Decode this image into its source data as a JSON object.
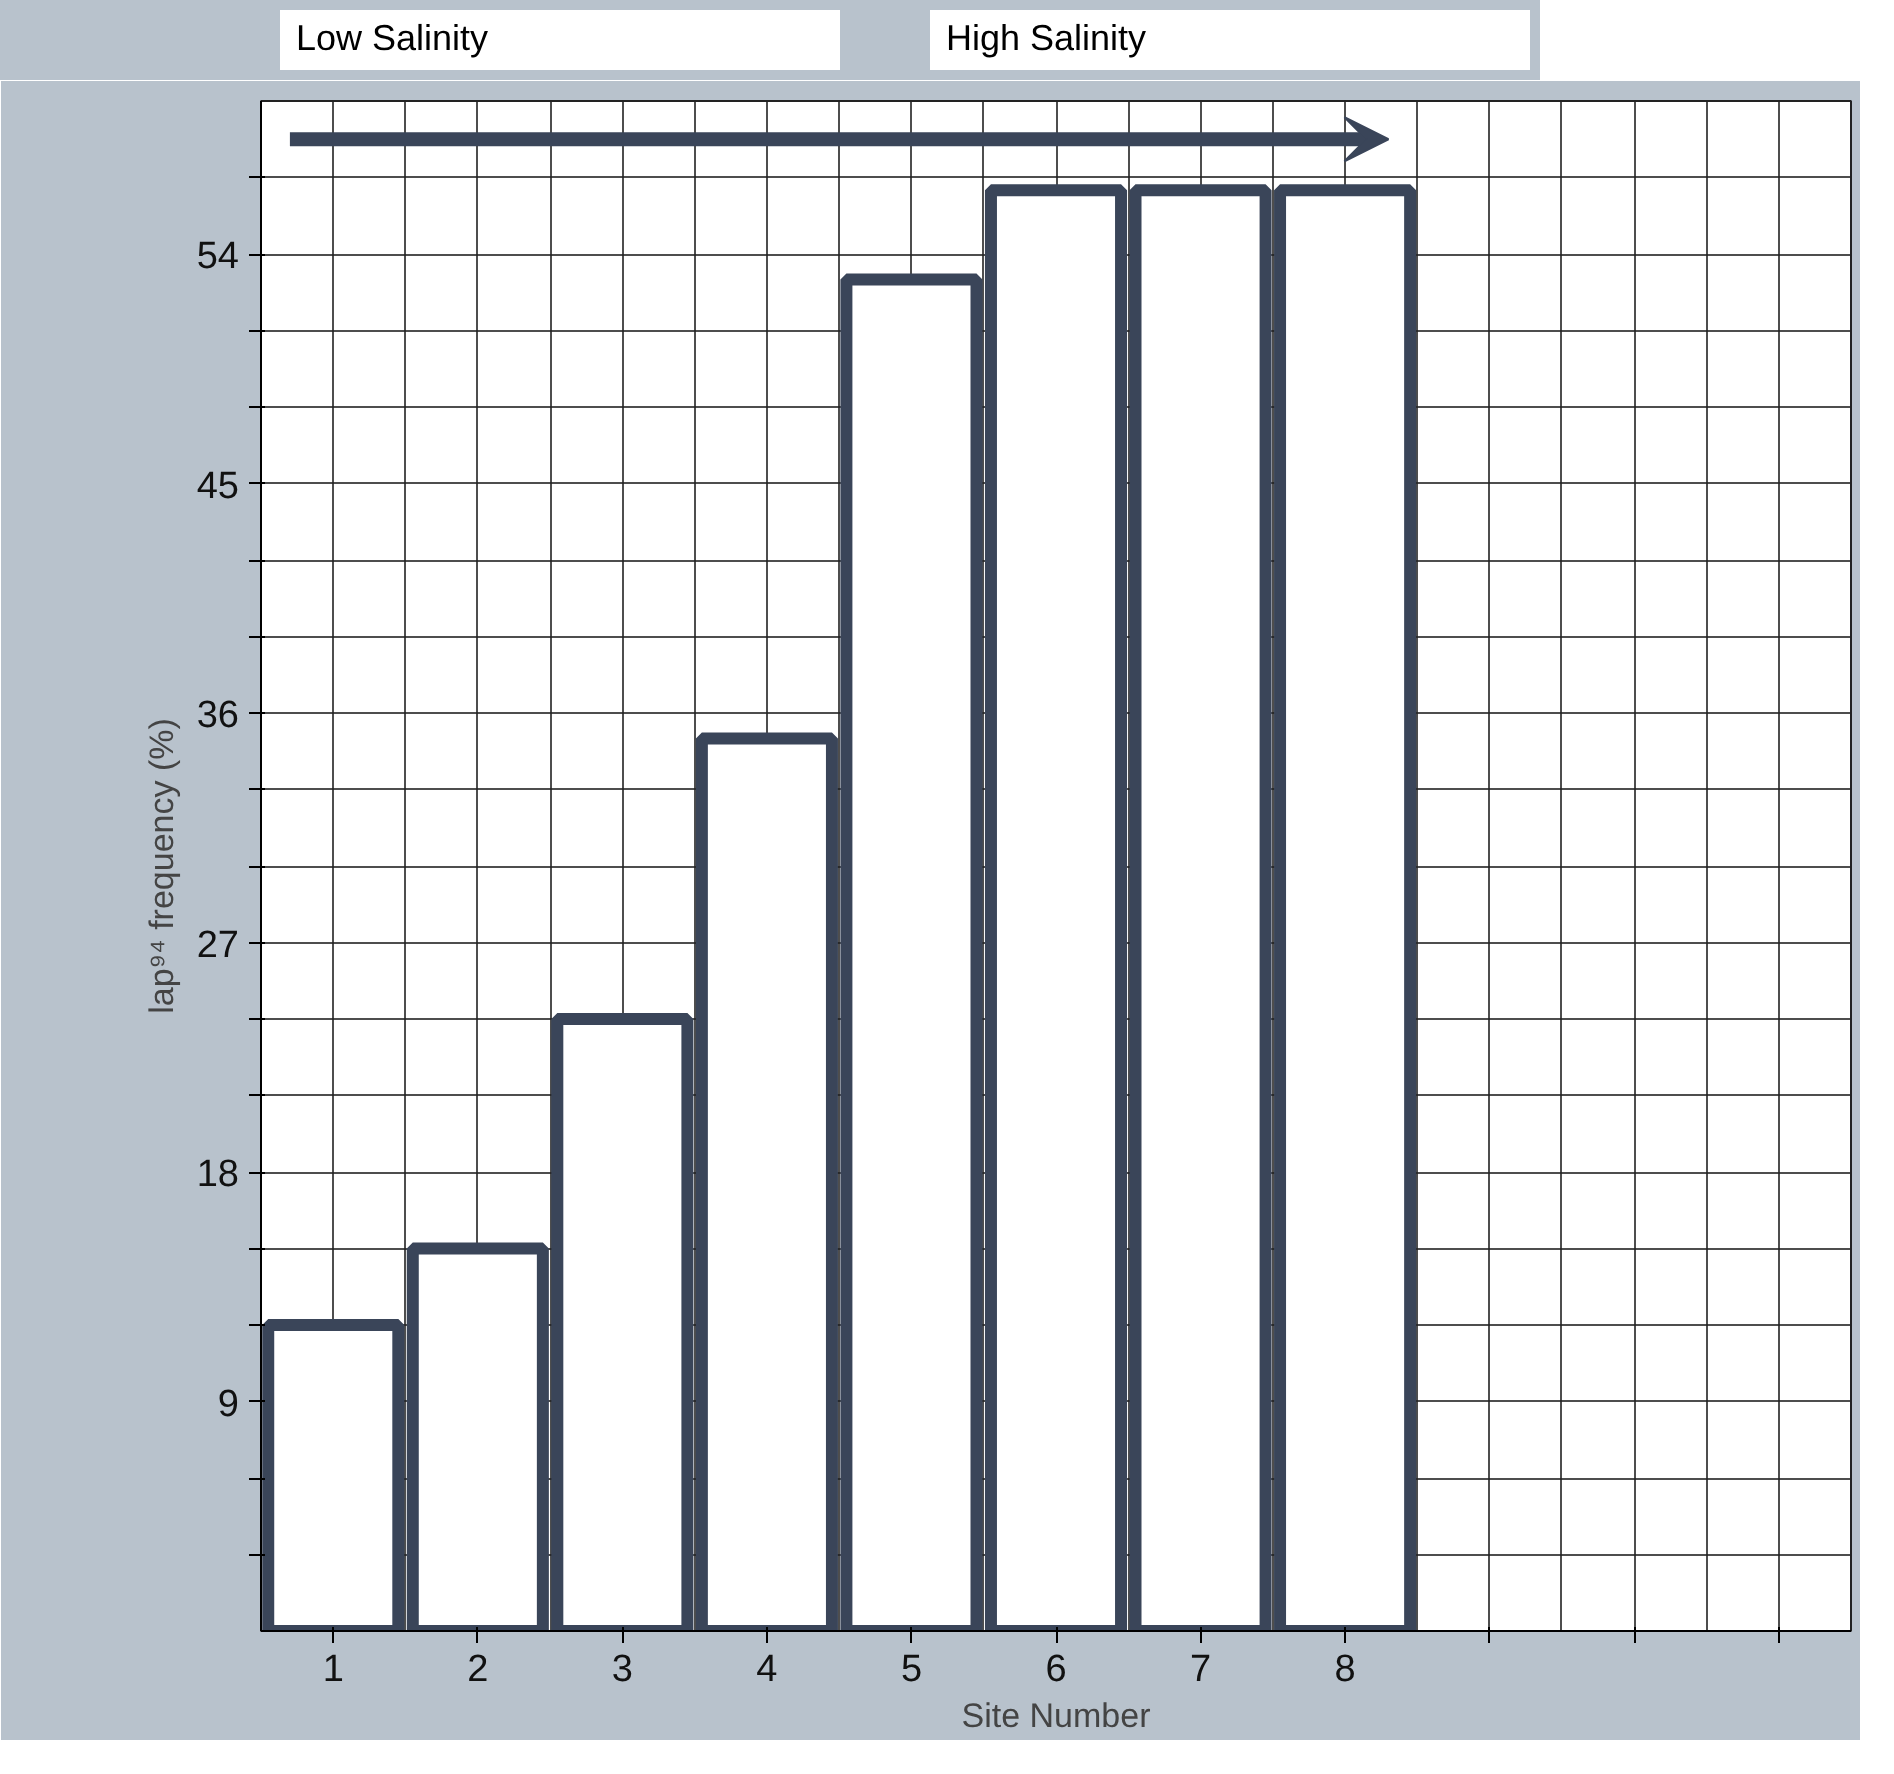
{
  "chart_data": {
    "type": "bar",
    "xlabel": "Site Number",
    "ylabel": "lap⁹⁴ frequency (%)",
    "categories": [
      "1",
      "2",
      "3",
      "4",
      "5",
      "6",
      "7",
      "8",
      null,
      null,
      null
    ],
    "values": [
      12,
      15,
      24,
      35,
      53,
      56.5,
      56.5,
      56.5,
      null,
      null,
      null
    ],
    "color": "#ffffff",
    "ylim": [
      0,
      60
    ],
    "yticks": [
      {
        "value": 3,
        "label": null
      },
      {
        "value": 6,
        "label": null
      },
      9,
      {
        "value": 12,
        "label": null
      },
      {
        "value": 15,
        "label": null
      },
      18,
      {
        "value": 21,
        "label": null
      },
      {
        "value": 24,
        "label": null
      },
      27,
      {
        "value": 30,
        "label": null
      },
      {
        "value": 33,
        "label": null
      },
      36,
      {
        "value": 39,
        "label": null
      },
      {
        "value": 42,
        "label": null
      },
      45,
      {
        "value": 48,
        "label": null
      },
      {
        "value": 51,
        "label": null
      },
      54,
      {
        "value": 57,
        "label": null
      }
    ],
    "grid": true,
    "annotations": [
      "Low Salinity",
      "High Salinity"
    ]
  }
}
